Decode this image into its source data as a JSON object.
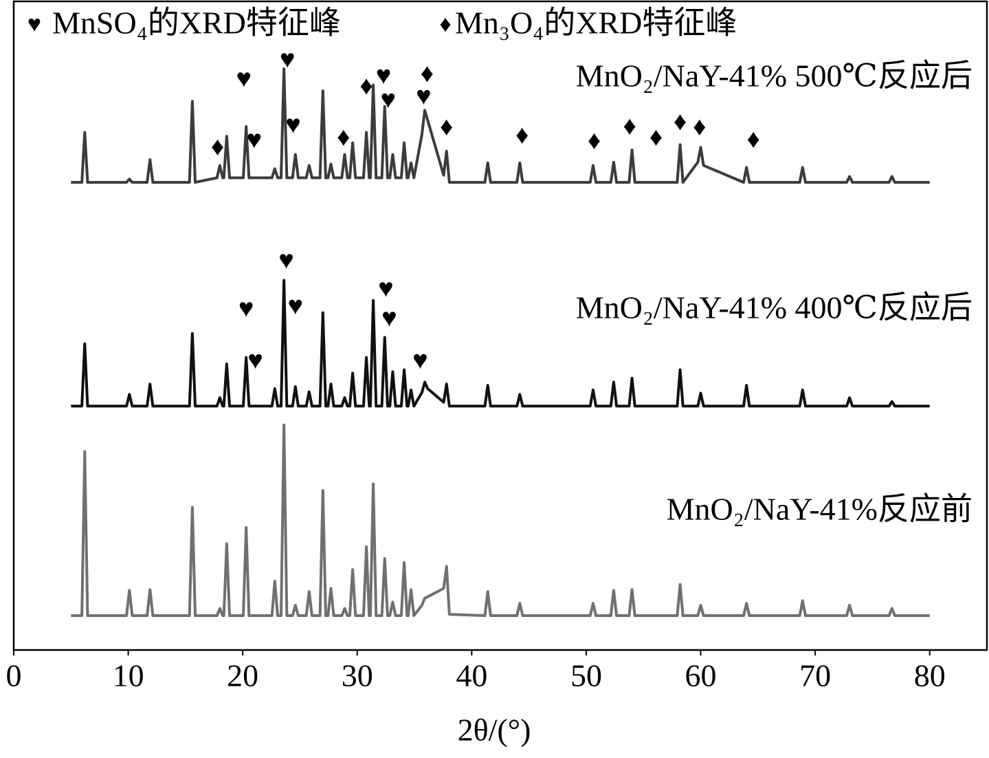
{
  "chart_data": {
    "type": "line",
    "x_label": "2θ/(°)",
    "xlim": [
      0,
      85
    ],
    "xticks": [
      0,
      10,
      20,
      30,
      40,
      50,
      60,
      70,
      80
    ],
    "ylim": [
      0,
      100
    ],
    "legend": [
      {
        "symbol": "♥",
        "label": "MnSO₄的XRD特征峰"
      },
      {
        "symbol": "♦",
        "label": "Mn₃O₄的XRD特征峰"
      }
    ],
    "x": [
      5,
      5.95,
      6.2,
      6.45,
      9.85,
      10.1,
      10.35,
      11.65,
      11.9,
      12.15,
      15.35,
      15.6,
      15.85,
      17.75,
      18,
      18.25,
      18.35,
      18.6,
      18.85,
      20.05,
      20.3,
      20.55,
      22.55,
      22.8,
      23.05,
      23.35,
      23.6,
      23.85,
      24.35,
      24.6,
      24.85,
      25.55,
      25.8,
      26.05,
      26.75,
      27,
      27.25,
      27.45,
      27.7,
      27.95,
      28.65,
      28.9,
      29.15,
      29.35,
      29.6,
      29.85,
      30.55,
      30.8,
      31.05,
      31.15,
      31.4,
      31.65,
      32.15,
      32.4,
      32.65,
      32.85,
      33.1,
      33.35,
      33.85,
      34.1,
      34.35,
      34.45,
      34.7,
      34.95,
      35.65,
      35.9,
      36.15,
      37.55,
      37.8,
      38.05,
      41.15,
      41.4,
      41.65,
      43.95,
      44.2,
      44.45,
      50.35,
      50.6,
      50.85,
      52.15,
      52.4,
      52.65,
      53.75,
      54,
      54.25,
      57.95,
      58.2,
      58.45,
      59.75,
      60,
      60.25,
      63.75,
      64,
      64.25,
      68.65,
      68.9,
      69.15,
      72.75,
      73,
      73.25,
      76.45,
      76.7,
      76.95,
      80
    ],
    "series": [
      {
        "name": "MnO₂/NaY-41% 500℃反应后",
        "color": "#3c3c3c",
        "values": [
          72.1,
          72.1,
          79.8,
          72.1,
          72.1,
          72.6,
          72.1,
          72.1,
          75.6,
          72.1,
          72.1,
          84.6,
          72.1,
          72.8,
          74.7,
          72.8,
          72.8,
          79.2,
          72.8,
          72.8,
          80.7,
          72.8,
          72.8,
          74.2,
          72.8,
          72.8,
          89.6,
          72.8,
          72.8,
          76.4,
          72.8,
          72.8,
          74.7,
          72.8,
          72.8,
          86.2,
          72.8,
          72.8,
          74.9,
          72.8,
          72.8,
          76.4,
          72.8,
          72.8,
          78.2,
          72.8,
          72.8,
          79.8,
          72.8,
          72.8,
          87.1,
          72.8,
          72.8,
          83.8,
          72.8,
          72.8,
          76.4,
          72.8,
          72.8,
          78.2,
          72.8,
          72.8,
          75.1,
          72.8,
          79.5,
          83.2,
          81.7,
          73.2,
          76.9,
          72.1,
          72.1,
          75.1,
          72.1,
          72.1,
          75.1,
          72.1,
          72.1,
          74.7,
          72.1,
          72.1,
          75.2,
          72.1,
          72.1,
          77.1,
          72.1,
          72.1,
          77.9,
          72.1,
          75.2,
          77.5,
          74.7,
          72.1,
          74.4,
          72.1,
          72.1,
          74.4,
          72.1,
          72.1,
          73.0,
          72.1,
          72.1,
          73.0,
          72.1,
          72.1
        ]
      },
      {
        "name": "MnO₂/NaY-41% 400℃反应后",
        "color": "#111111",
        "values": [
          37.6,
          37.6,
          47.2,
          37.6,
          37.6,
          39.4,
          37.6,
          37.6,
          41.0,
          37.6,
          37.6,
          48.8,
          37.6,
          37.6,
          38.9,
          37.6,
          37.6,
          44.1,
          37.6,
          37.6,
          45.1,
          37.6,
          37.6,
          40.3,
          37.6,
          37.6,
          57.0,
          37.6,
          37.6,
          40.6,
          37.6,
          37.6,
          39.8,
          37.6,
          37.6,
          52.0,
          37.6,
          37.6,
          41.0,
          37.6,
          37.6,
          38.9,
          37.6,
          37.6,
          42.7,
          37.6,
          37.6,
          45.1,
          37.6,
          37.6,
          53.9,
          37.6,
          37.6,
          48.2,
          37.6,
          37.6,
          42.9,
          37.6,
          37.6,
          43.2,
          37.6,
          37.6,
          40.1,
          37.6,
          39.7,
          41.3,
          40.3,
          38.2,
          41.0,
          37.6,
          37.6,
          40.8,
          37.6,
          37.6,
          39.4,
          37.6,
          37.6,
          40.1,
          37.6,
          37.6,
          41.3,
          37.6,
          37.6,
          41.9,
          37.6,
          37.6,
          43.2,
          37.6,
          37.6,
          39.6,
          37.6,
          37.6,
          40.8,
          37.6,
          37.6,
          40.1,
          37.6,
          37.6,
          38.9,
          37.6,
          37.6,
          38.3,
          37.6,
          37.6
        ]
      },
      {
        "name": "MnO₂/NaY-41%反应前",
        "color": "#707070",
        "values": [
          5.3,
          5.3,
          30.6,
          5.3,
          5.3,
          9.2,
          5.3,
          5.3,
          9.3,
          5.3,
          5.3,
          22.0,
          5.3,
          5.3,
          6.4,
          5.3,
          5.3,
          16.4,
          5.3,
          5.3,
          18.9,
          5.3,
          5.3,
          10.6,
          5.3,
          5.3,
          34.7,
          5.3,
          5.3,
          6.9,
          5.3,
          5.3,
          9.0,
          5.3,
          5.3,
          24.6,
          5.3,
          5.3,
          9.5,
          5.3,
          5.3,
          6.4,
          5.3,
          5.3,
          12.4,
          5.3,
          5.3,
          15.9,
          5.3,
          5.3,
          25.6,
          5.3,
          5.3,
          14.1,
          5.3,
          5.3,
          7.4,
          5.3,
          5.3,
          13.5,
          5.3,
          5.3,
          9.3,
          5.3,
          6.9,
          8.0,
          8.2,
          9.5,
          12.9,
          5.5,
          5.3,
          9.0,
          5.3,
          5.3,
          7.2,
          5.3,
          5.3,
          7.2,
          5.3,
          5.3,
          9.2,
          5.3,
          5.3,
          9.3,
          5.3,
          5.3,
          10.1,
          5.3,
          5.3,
          6.9,
          5.3,
          5.3,
          7.2,
          5.3,
          5.3,
          7.6,
          5.3,
          5.3,
          6.9,
          5.3,
          5.3,
          6.4,
          5.3,
          5.3
        ]
      }
    ],
    "annotations": [
      {
        "text": "♥",
        "x": 20.1,
        "y": 87.7
      },
      {
        "text": "♥",
        "x": 23.9,
        "y": 90.7
      },
      {
        "text": "♦",
        "x": 17.8,
        "y": 77.2
      },
      {
        "text": "♥",
        "x": 21.0,
        "y": 78.3
      },
      {
        "text": "♥",
        "x": 24.4,
        "y": 80.6
      },
      {
        "text": "♦",
        "x": 28.8,
        "y": 78.7
      },
      {
        "text": "♦",
        "x": 30.8,
        "y": 86.6
      },
      {
        "text": "♥",
        "x": 32.3,
        "y": 88.2
      },
      {
        "text": "♥",
        "x": 32.7,
        "y": 84.5
      },
      {
        "text": "♦",
        "x": 36.1,
        "y": 88.5
      },
      {
        "text": "♥",
        "x": 35.8,
        "y": 85.0
      },
      {
        "text": "♦",
        "x": 37.8,
        "y": 80.3
      },
      {
        "text": "♦",
        "x": 44.4,
        "y": 79.0
      },
      {
        "text": "♦",
        "x": 50.7,
        "y": 78.2
      },
      {
        "text": "♦",
        "x": 53.8,
        "y": 80.4
      },
      {
        "text": "♦",
        "x": 56.1,
        "y": 78.7
      },
      {
        "text": "♦",
        "x": 58.2,
        "y": 81.1
      },
      {
        "text": "♦",
        "x": 59.9,
        "y": 80.3
      },
      {
        "text": "♦",
        "x": 64.6,
        "y": 78.4
      },
      {
        "text": "♥",
        "x": 23.8,
        "y": 59.7
      },
      {
        "text": "♥",
        "x": 20.3,
        "y": 52.3
      },
      {
        "text": "♥",
        "x": 24.6,
        "y": 52.7
      },
      {
        "text": "♥",
        "x": 32.5,
        "y": 55.4
      },
      {
        "text": "♥",
        "x": 32.8,
        "y": 50.8
      },
      {
        "text": "♥",
        "x": 21.1,
        "y": 44.3
      },
      {
        "text": "♥",
        "x": 35.5,
        "y": 44.3
      }
    ]
  }
}
